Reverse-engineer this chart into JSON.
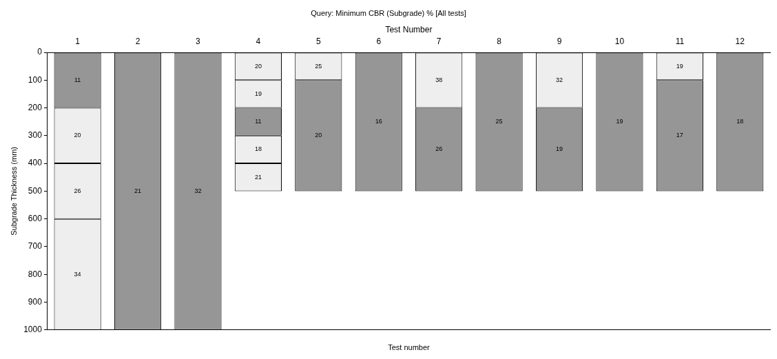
{
  "chart_data": {
    "type": "bar",
    "title": "Query: Minimum CBR (Subgrade) % [All tests]",
    "xlabel": "Test number",
    "x2label": "Test Number",
    "ylabel": "Subgrade Thickness (mm)",
    "categories": [
      "1",
      "2",
      "3",
      "4",
      "5",
      "6",
      "7",
      "8",
      "9",
      "10",
      "11",
      "12"
    ],
    "stacked": true,
    "ylim": [
      1000,
      0
    ],
    "yticks": [
      0,
      100,
      200,
      300,
      400,
      500,
      600,
      700,
      800,
      900,
      1000
    ],
    "grid": false,
    "legend": false,
    "series": [
      {
        "values": [
          200,
          1000,
          1000,
          100,
          100,
          500,
          200,
          500,
          200,
          500,
          100,
          500
        ],
        "colors": [
          "#969696",
          "#969696",
          "#969696",
          "#eeeeee",
          "#eeeeee",
          "#969696",
          "#eeeeee",
          "#969696",
          "#eeeeee",
          "#969696",
          "#eeeeee",
          "#969696"
        ]
      },
      {
        "values": [
          200,
          null,
          null,
          100,
          400,
          null,
          300,
          null,
          300,
          null,
          400,
          null
        ],
        "colors": [
          "#eeeeee",
          null,
          null,
          "#eeeeee",
          "#969696",
          null,
          "#969696",
          null,
          "#969696",
          null,
          "#969696",
          null
        ]
      },
      {
        "values": [
          200,
          null,
          null,
          100,
          null,
          null,
          null,
          null,
          null,
          null,
          null,
          null
        ],
        "colors": [
          "#eeeeee",
          null,
          null,
          "#969696",
          null,
          null,
          null,
          null,
          null,
          null,
          null,
          null
        ]
      },
      {
        "values": [
          400,
          null,
          null,
          100,
          null,
          null,
          null,
          null,
          null,
          null,
          null,
          null
        ],
        "colors": [
          "#eeeeee",
          null,
          null,
          "#eeeeee",
          null,
          null,
          null,
          null,
          null,
          null,
          null,
          null
        ]
      },
      {
        "values": [
          null,
          null,
          null,
          100,
          null,
          null,
          null,
          null,
          null,
          null,
          null,
          null
        ],
        "colors": [
          null,
          null,
          null,
          "#eeeeee",
          null,
          null,
          null,
          null,
          null,
          null,
          null,
          null
        ]
      }
    ],
    "annotations": [
      "11",
      "20",
      "26",
      "34",
      "21",
      "32",
      "20",
      "19",
      "11",
      "18",
      "21",
      "25",
      "20",
      "16",
      "38",
      "26",
      "25",
      "32",
      "19",
      "19",
      "19",
      "17",
      "18"
    ]
  }
}
